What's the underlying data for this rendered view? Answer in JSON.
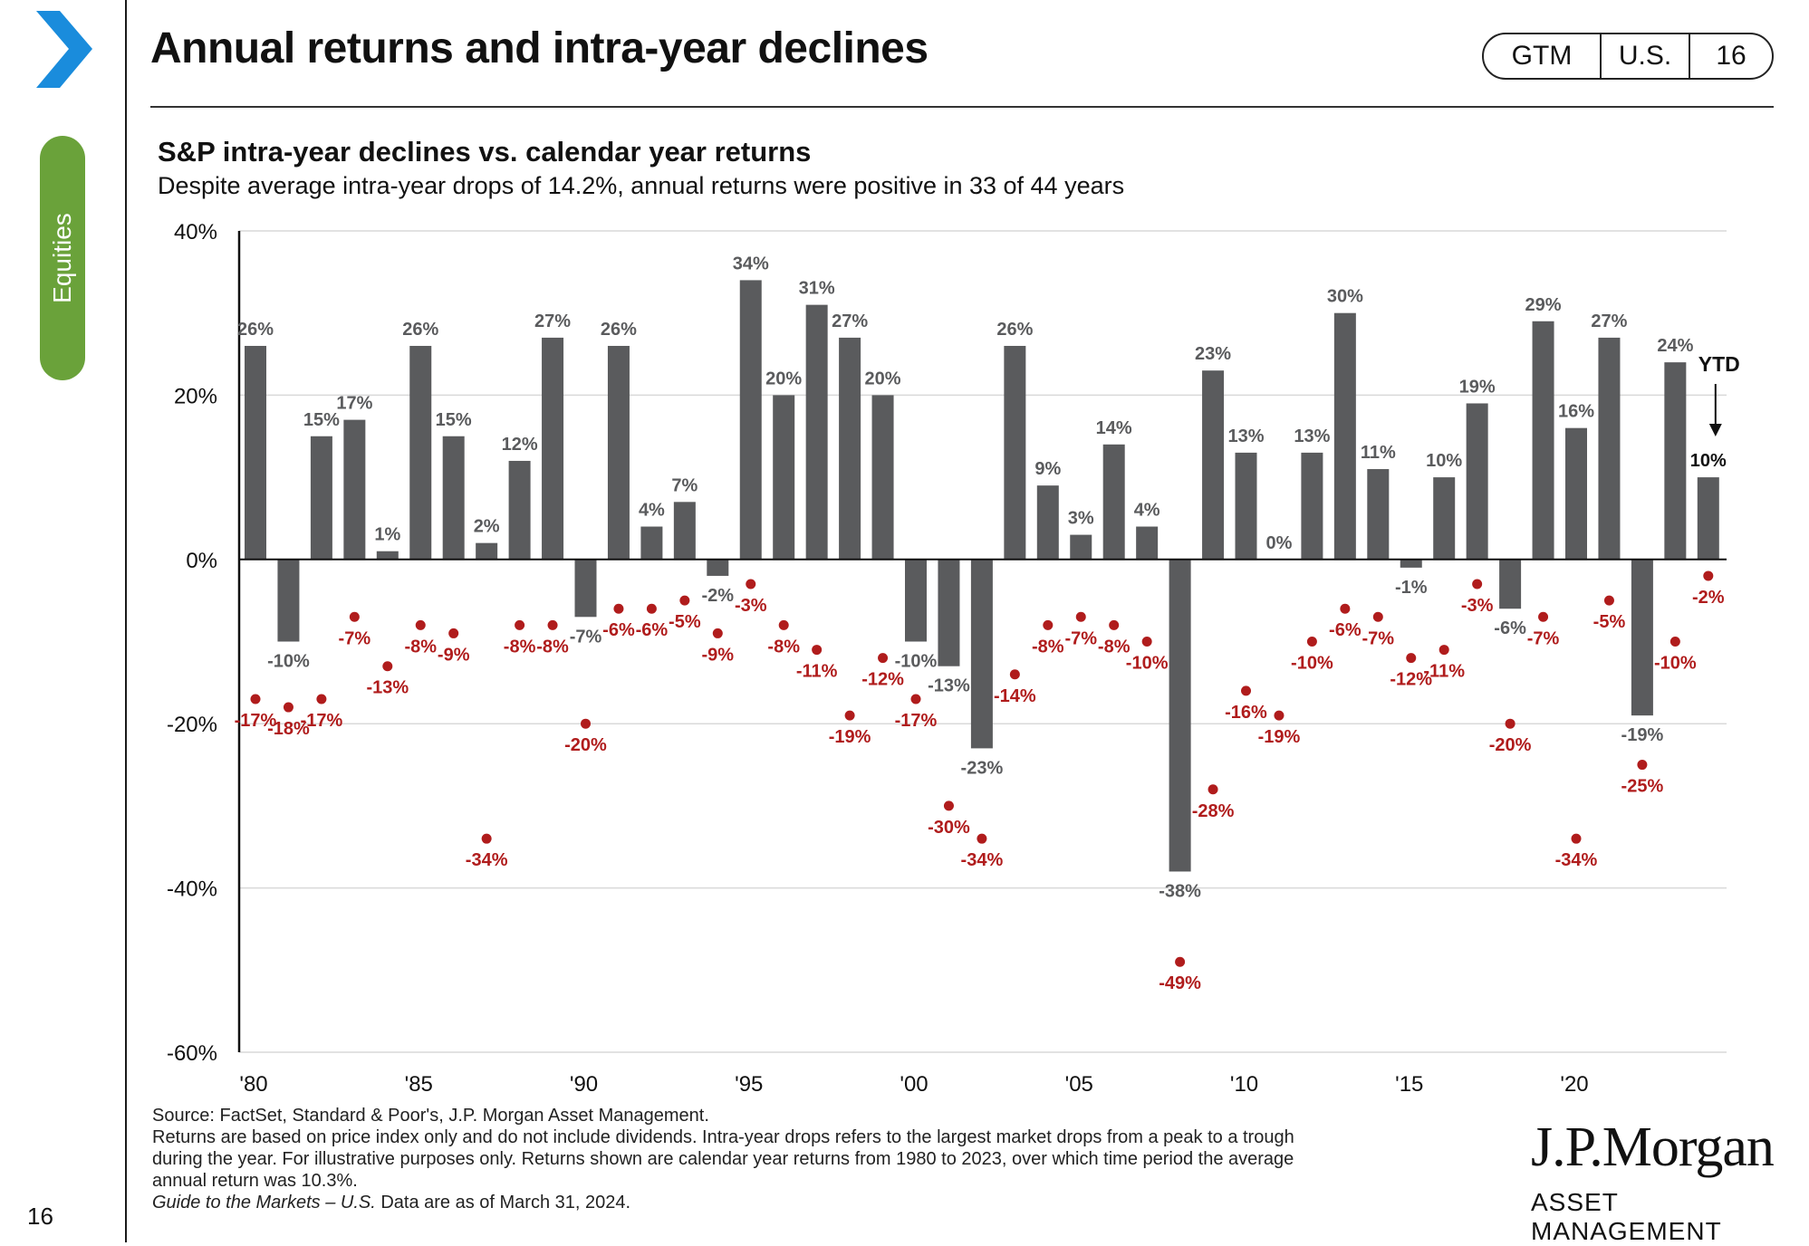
{
  "header": {
    "title": "Annual returns and intra-year declines",
    "badge": [
      "GTM",
      "U.S.",
      "16"
    ]
  },
  "sidebar": {
    "tab_label": "Equities",
    "page_number": "16"
  },
  "colors": {
    "bar": "#5a5b5d",
    "decline": "#b01c1c",
    "accent_blue": "#1a8cdc",
    "accent_green": "#6aa23a"
  },
  "chart_data": {
    "type": "bar",
    "title": "S&P intra-year declines vs. calendar year returns",
    "subtitle": "Despite average intra-year drops of 14.2%, annual returns were positive in 33 of 44 years",
    "x": [
      1980,
      1981,
      1982,
      1983,
      1984,
      1985,
      1986,
      1987,
      1988,
      1989,
      1990,
      1991,
      1992,
      1993,
      1994,
      1995,
      1996,
      1997,
      1998,
      1999,
      2000,
      2001,
      2002,
      2003,
      2004,
      2005,
      2006,
      2007,
      2008,
      2009,
      2010,
      2011,
      2012,
      2013,
      2014,
      2015,
      2016,
      2017,
      2018,
      2019,
      2020,
      2021,
      2022,
      2023,
      2024
    ],
    "x_tick_labels": [
      "'80",
      "'85",
      "'90",
      "'95",
      "'00",
      "'05",
      "'10",
      "'15",
      "'20"
    ],
    "ylim": [
      -60,
      40
    ],
    "y_ticks": [
      40,
      20,
      0,
      -20,
      -40,
      -60
    ],
    "y_tick_labels": [
      "40%",
      "20%",
      "0%",
      "-20%",
      "-40%",
      "-60%"
    ],
    "grid": true,
    "series": [
      {
        "values": [
          26,
          -10,
          15,
          17,
          1,
          26,
          15,
          2,
          12,
          27,
          -7,
          26,
          4,
          7,
          -2,
          34,
          20,
          31,
          27,
          20,
          -10,
          -13,
          -23,
          26,
          9,
          3,
          14,
          4,
          -38,
          23,
          13,
          0,
          13,
          30,
          11,
          -1,
          10,
          19,
          -6,
          29,
          16,
          27,
          -19,
          24,
          10
        ]
      },
      {
        "values": [
          -17,
          -18,
          -17,
          -7,
          -13,
          -8,
          -9,
          -34,
          -8,
          -8,
          -20,
          -6,
          -6,
          -5,
          -9,
          -3,
          -8,
          -11,
          -19,
          -12,
          -17,
          -30,
          -34,
          -14,
          -8,
          -7,
          -8,
          -10,
          -49,
          -28,
          -16,
          -19,
          -10,
          -6,
          -7,
          -12,
          -11,
          -3,
          -20,
          -7,
          -34,
          -5,
          -25,
          -10,
          -2
        ]
      }
    ],
    "annotation": "YTD"
  },
  "footnote": {
    "lines": [
      "Source: FactSet, Standard & Poor's, J.P. Morgan Asset Management.",
      "Returns are based on price index only and do not include dividends.  Intra-year drops refers to the largest market drops from a peak to a trough",
      "during the year. For illustrative purposes only. Returns shown are calendar year returns from 1980 to 2023, over which time period the average",
      "annual return was 10.3%."
    ],
    "guide_italic": "Guide to the Markets – U.S.",
    "guide_rest": " Data are as of March 31, 2024."
  },
  "logo": {
    "main": "J.P.Morgan",
    "sub": "ASSET MANAGEMENT"
  }
}
